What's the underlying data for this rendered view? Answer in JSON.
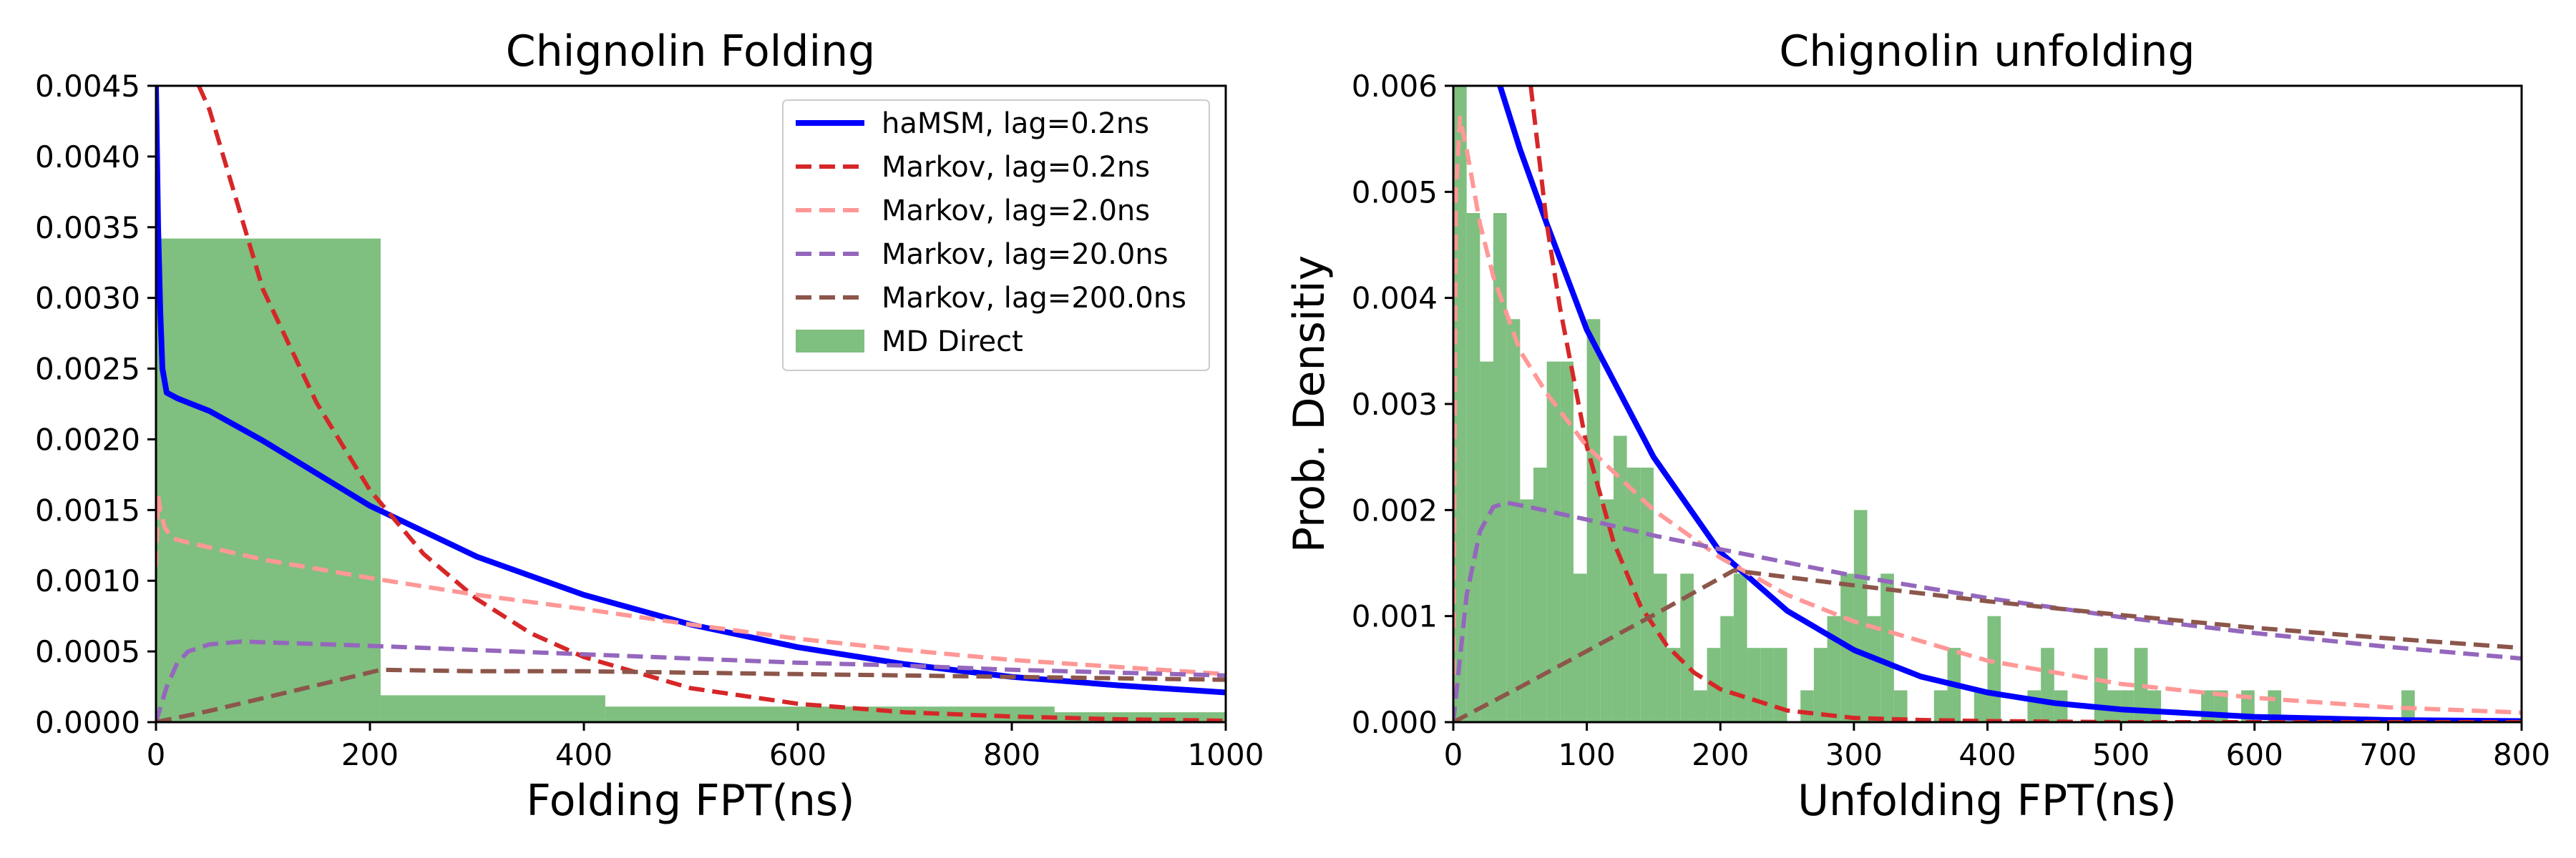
{
  "chart_data": [
    {
      "type": "line",
      "title": "Chignolin Folding",
      "xlabel": "Folding FPT(ns)",
      "ylabel": "",
      "xlim": [
        0,
        1000
      ],
      "ylim": [
        0,
        0.0045
      ],
      "xticks": [
        "0",
        "200",
        "400",
        "600",
        "800",
        "1000"
      ],
      "yticks": [
        "0.0000",
        "0.0005",
        "0.0010",
        "0.0015",
        "0.0020",
        "0.0025",
        "0.0030",
        "0.0035",
        "0.0040",
        "0.0045"
      ],
      "legend": {
        "placement": "top-right",
        "entries": [
          "haMSM, lag=0.2ns",
          "Markov, lag=0.2ns",
          "Markov, lag=2.0ns",
          "Markov, lag=20.0ns",
          "Markov, lag=200.0ns",
          "MD Direct"
        ]
      },
      "histogram": {
        "name": "MD Direct",
        "color": "#7fbf7f",
        "bins": [
          [
            0,
            210,
            0.00342
          ],
          [
            210,
            420,
            0.00019
          ],
          [
            420,
            840,
            0.00011
          ],
          [
            840,
            1000,
            7e-05
          ]
        ]
      },
      "series": [
        {
          "name": "haMSM, lag=0.2ns",
          "color": "#0000ff",
          "style": "solid",
          "x": [
            0,
            2,
            4,
            6,
            10,
            20,
            50,
            100,
            200,
            300,
            400,
            500,
            600,
            700,
            800,
            900,
            1000
          ],
          "y": [
            0.0045,
            0.0035,
            0.0029,
            0.0025,
            0.00233,
            0.00229,
            0.0022,
            0.00199,
            0.00153,
            0.00117,
            0.0009,
            0.00069,
            0.00053,
            0.00041,
            0.00032,
            0.00026,
            0.00021
          ]
        },
        {
          "name": "Markov, lag=0.2ns",
          "color": "#d62728",
          "style": "dashed",
          "x": [
            40,
            50,
            100,
            150,
            200,
            250,
            300,
            350,
            400,
            500,
            600,
            700,
            800,
            900,
            1000
          ],
          "y": [
            0.0045,
            0.00433,
            0.00306,
            0.00226,
            0.00164,
            0.00119,
            0.00087,
            0.00063,
            0.00046,
            0.00024,
            0.00013,
            7e-05,
            4e-05,
            2e-05,
            1e-05
          ]
        },
        {
          "name": "Markov, lag=2.0ns",
          "color": "#ff9896",
          "style": "dashed",
          "x": [
            0,
            2,
            4,
            8,
            15,
            30,
            100,
            200,
            300,
            400,
            500,
            600,
            700,
            800,
            900,
            1000
          ],
          "y": [
            0.0011,
            0.0016,
            0.0015,
            0.00138,
            0.0013,
            0.00127,
            0.00115,
            0.00102,
            0.0009,
            0.0008,
            0.00069,
            0.00059,
            0.00051,
            0.00044,
            0.00039,
            0.00034
          ]
        },
        {
          "name": "Markov, lag=20.0ns",
          "color": "#9467bd",
          "style": "dashed",
          "x": [
            0,
            10,
            20,
            30,
            50,
            80,
            120,
            200,
            300,
            400,
            500,
            600,
            700,
            800,
            900,
            1000
          ],
          "y": [
            0.0,
            0.00025,
            0.00042,
            0.0005,
            0.00055,
            0.00057,
            0.00056,
            0.00054,
            0.00051,
            0.00048,
            0.00045,
            0.00042,
            0.0004,
            0.00037,
            0.00035,
            0.00033
          ]
        },
        {
          "name": "Markov, lag=200.0ns",
          "color": "#8c564b",
          "style": "dashed",
          "x": [
            0,
            50,
            100,
            150,
            210,
            300,
            400,
            500,
            600,
            700,
            800,
            900,
            1000
          ],
          "y": [
            0.0,
            8e-05,
            0.00017,
            0.00026,
            0.00037,
            0.00036,
            0.00036,
            0.00035,
            0.00034,
            0.00033,
            0.00032,
            0.00031,
            0.0003
          ]
        }
      ]
    },
    {
      "type": "line",
      "title": "Chignolin unfolding",
      "xlabel": "Unfolding FPT(ns)",
      "ylabel": "Prob. Densitiy",
      "xlim": [
        0,
        800
      ],
      "ylim": [
        0,
        0.006
      ],
      "xticks": [
        "0",
        "100",
        "200",
        "300",
        "400",
        "500",
        "600",
        "700",
        "800"
      ],
      "yticks": [
        "0.000",
        "0.001",
        "0.002",
        "0.003",
        "0.004",
        "0.005",
        "0.006"
      ],
      "histogram": {
        "name": "MD Direct",
        "color": "#7fbf7f",
        "bins": [
          [
            0,
            10,
            0.006
          ],
          [
            10,
            20,
            0.0048
          ],
          [
            20,
            30,
            0.0034
          ],
          [
            30,
            40,
            0.0048
          ],
          [
            40,
            50,
            0.0038
          ],
          [
            50,
            60,
            0.0021
          ],
          [
            60,
            70,
            0.0024
          ],
          [
            70,
            80,
            0.0034
          ],
          [
            80,
            90,
            0.0034
          ],
          [
            90,
            100,
            0.0014
          ],
          [
            100,
            110,
            0.0038
          ],
          [
            110,
            120,
            0.0021
          ],
          [
            120,
            130,
            0.0027
          ],
          [
            130,
            140,
            0.0024
          ],
          [
            140,
            150,
            0.0024
          ],
          [
            150,
            160,
            0.0014
          ],
          [
            160,
            170,
            0.0007
          ],
          [
            170,
            180,
            0.0014
          ],
          [
            180,
            190,
            0.0003
          ],
          [
            190,
            200,
            0.0007
          ],
          [
            200,
            210,
            0.001
          ],
          [
            210,
            220,
            0.0014
          ],
          [
            220,
            230,
            0.0007
          ],
          [
            230,
            240,
            0.0007
          ],
          [
            240,
            250,
            0.0007
          ],
          [
            260,
            270,
            0.0003
          ],
          [
            270,
            280,
            0.0007
          ],
          [
            280,
            290,
            0.001
          ],
          [
            290,
            300,
            0.0014
          ],
          [
            300,
            310,
            0.002
          ],
          [
            310,
            320,
            0.001
          ],
          [
            320,
            330,
            0.0014
          ],
          [
            330,
            340,
            0.0003
          ],
          [
            360,
            370,
            0.0003
          ],
          [
            370,
            380,
            0.0007
          ],
          [
            390,
            400,
            0.0003
          ],
          [
            400,
            410,
            0.001
          ],
          [
            430,
            440,
            0.0003
          ],
          [
            440,
            450,
            0.0007
          ],
          [
            450,
            460,
            0.0003
          ],
          [
            480,
            490,
            0.0007
          ],
          [
            490,
            500,
            0.0003
          ],
          [
            500,
            510,
            0.0003
          ],
          [
            510,
            520,
            0.0007
          ],
          [
            520,
            530,
            0.0003
          ],
          [
            560,
            570,
            0.0003
          ],
          [
            570,
            580,
            0.0003
          ],
          [
            590,
            600,
            0.0003
          ],
          [
            610,
            620,
            0.0003
          ],
          [
            710,
            720,
            0.0003
          ]
        ]
      },
      "series": [
        {
          "name": "haMSM, lag=0.2ns",
          "color": "#0000ff",
          "style": "solid",
          "x": [
            35,
            50,
            70,
            100,
            150,
            200,
            250,
            300,
            350,
            400,
            450,
            500,
            600,
            700,
            800
          ],
          "y": [
            0.006,
            0.0054,
            0.0047,
            0.0037,
            0.0025,
            0.0016,
            0.00105,
            0.00068,
            0.00043,
            0.00028,
            0.00018,
            0.00012,
            5e-05,
            2e-05,
            1e-05
          ]
        },
        {
          "name": "Markov, lag=0.2ns",
          "color": "#d62728",
          "style": "dashed",
          "x": [
            58,
            70,
            80,
            100,
            120,
            140,
            160,
            180,
            200,
            250,
            300,
            350,
            400,
            500,
            600,
            700,
            800
          ],
          "y": [
            0.006,
            0.0047,
            0.0039,
            0.0026,
            0.0017,
            0.0011,
            0.00072,
            0.00047,
            0.00031,
            0.00011,
            4e-05,
            2e-05,
            1e-05,
            0.0,
            0.0,
            0.0,
            0.0
          ]
        },
        {
          "name": "Markov, lag=2.0ns",
          "color": "#ff9896",
          "style": "dashed",
          "x": [
            0,
            2,
            5,
            10,
            20,
            30,
            50,
            70,
            100,
            150,
            200,
            250,
            300,
            400,
            500,
            600,
            700,
            800
          ],
          "y": [
            0.0,
            0.005,
            0.0057,
            0.0054,
            0.0047,
            0.0042,
            0.0035,
            0.0031,
            0.0026,
            0.002,
            0.00155,
            0.0012,
            0.00095,
            0.00058,
            0.00036,
            0.00023,
            0.00014,
            9e-05
          ]
        },
        {
          "name": "Markov, lag=20.0ns",
          "color": "#9467bd",
          "style": "dashed",
          "x": [
            0,
            5,
            10,
            20,
            30,
            40,
            60,
            100,
            150,
            200,
            300,
            400,
            500,
            600,
            700,
            800
          ],
          "y": [
            0.0,
            0.0006,
            0.0012,
            0.0018,
            0.00203,
            0.00207,
            0.00202,
            0.00191,
            0.00176,
            0.00163,
            0.00138,
            0.00117,
            0.00099,
            0.00084,
            0.00071,
            0.0006
          ]
        },
        {
          "name": "Markov, lag=200.0ns",
          "color": "#8c564b",
          "style": "dashed",
          "x": [
            0,
            50,
            100,
            150,
            210,
            300,
            400,
            500,
            600,
            700,
            800
          ],
          "y": [
            0.0,
            0.00033,
            0.00067,
            0.00101,
            0.00143,
            0.00129,
            0.00114,
            0.00101,
            0.00089,
            0.00079,
            0.0007
          ]
        }
      ]
    }
  ]
}
